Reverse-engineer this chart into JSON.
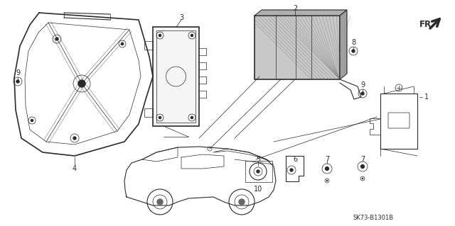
{
  "background_color": "#ffffff",
  "line_color": "#2a2a2a",
  "fig_width": 6.4,
  "fig_height": 3.19,
  "dpi": 100,
  "watermark": "SK73-B1301B",
  "label_fs": 7.0
}
